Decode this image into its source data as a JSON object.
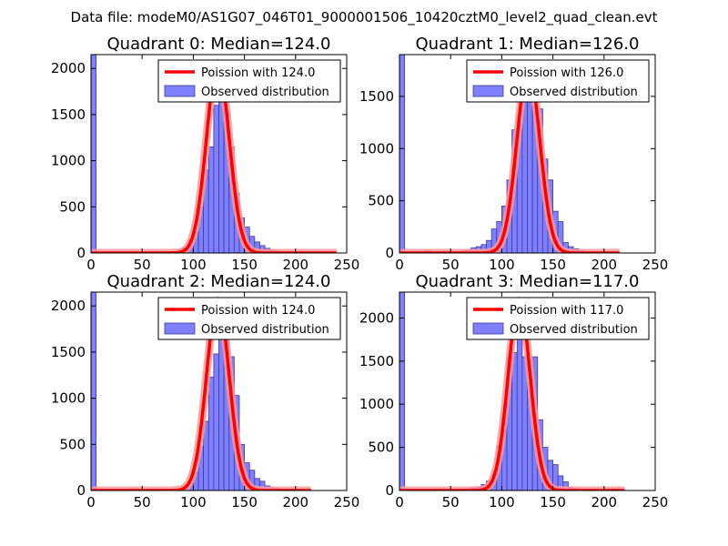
{
  "suptitle": "Data file: modeM0/AS1G07_046T01_9000001506_10420cztM0_level2_quad_clean.evt",
  "colors": {
    "bar_fill": "#8080ff",
    "bar_edge": "#3a3aa0",
    "line": "#ff0000",
    "line_peak": "#ff9999",
    "legend_patch": "#8080ff"
  },
  "chart_data": [
    {
      "type": "bar",
      "title": "Quadrant 0: Median=124.0",
      "legend": [
        "Poission with 124.0",
        "Observed distribution"
      ],
      "xlim": [
        0,
        250
      ],
      "ylim": [
        0,
        2150
      ],
      "xticks": [
        0,
        50,
        100,
        150,
        200,
        250
      ],
      "yticks": [
        0,
        500,
        1000,
        1500,
        2000
      ],
      "bin_width": 5,
      "bins": [
        {
          "x": 0,
          "h": 2150
        },
        {
          "x": 70,
          "h": 8
        },
        {
          "x": 75,
          "h": 10
        },
        {
          "x": 80,
          "h": 15
        },
        {
          "x": 85,
          "h": 30
        },
        {
          "x": 90,
          "h": 60
        },
        {
          "x": 95,
          "h": 140
        },
        {
          "x": 100,
          "h": 220
        },
        {
          "x": 105,
          "h": 500
        },
        {
          "x": 110,
          "h": 900
        },
        {
          "x": 115,
          "h": 1150
        },
        {
          "x": 120,
          "h": 1600
        },
        {
          "x": 125,
          "h": 1800
        },
        {
          "x": 130,
          "h": 1550
        },
        {
          "x": 135,
          "h": 1150
        },
        {
          "x": 140,
          "h": 650
        },
        {
          "x": 145,
          "h": 380
        },
        {
          "x": 150,
          "h": 280
        },
        {
          "x": 155,
          "h": 180
        },
        {
          "x": 160,
          "h": 120
        },
        {
          "x": 165,
          "h": 80
        },
        {
          "x": 170,
          "h": 50
        },
        {
          "x": 175,
          "h": 30
        },
        {
          "x": 180,
          "h": 20
        },
        {
          "x": 185,
          "h": 10
        }
      ],
      "poisson_mean": 124.0,
      "poisson_peak": 2050,
      "x_end": 240
    },
    {
      "type": "bar",
      "title": "Quadrant 1: Median=126.0",
      "legend": [
        "Poission with 126.0",
        "Observed distribution"
      ],
      "xlim": [
        0,
        250
      ],
      "ylim": [
        0,
        1900
      ],
      "xticks": [
        0,
        50,
        100,
        150,
        200,
        250
      ],
      "yticks": [
        0,
        500,
        1000,
        1500
      ],
      "bin_width": 5,
      "bins": [
        {
          "x": 0,
          "h": 1900
        },
        {
          "x": 25,
          "h": 25
        },
        {
          "x": 30,
          "h": 10
        },
        {
          "x": 40,
          "h": 15
        },
        {
          "x": 45,
          "h": 10
        },
        {
          "x": 60,
          "h": 20
        },
        {
          "x": 65,
          "h": 30
        },
        {
          "x": 70,
          "h": 50
        },
        {
          "x": 75,
          "h": 60
        },
        {
          "x": 80,
          "h": 80
        },
        {
          "x": 85,
          "h": 120
        },
        {
          "x": 90,
          "h": 230
        },
        {
          "x": 95,
          "h": 300
        },
        {
          "x": 100,
          "h": 450
        },
        {
          "x": 105,
          "h": 700
        },
        {
          "x": 110,
          "h": 1180
        },
        {
          "x": 115,
          "h": 1230
        },
        {
          "x": 120,
          "h": 1800
        },
        {
          "x": 125,
          "h": 1820
        },
        {
          "x": 130,
          "h": 1400
        },
        {
          "x": 135,
          "h": 1380
        },
        {
          "x": 140,
          "h": 900
        },
        {
          "x": 145,
          "h": 700
        },
        {
          "x": 150,
          "h": 400
        },
        {
          "x": 155,
          "h": 300
        },
        {
          "x": 160,
          "h": 100
        },
        {
          "x": 165,
          "h": 60
        },
        {
          "x": 170,
          "h": 40
        },
        {
          "x": 175,
          "h": 20
        }
      ],
      "poisson_mean": 126.0,
      "poisson_peak": 1780,
      "x_end": 215
    },
    {
      "type": "bar",
      "title": "Quadrant 2: Median=124.0",
      "legend": [
        "Poission with 124.0",
        "Observed distribution"
      ],
      "xlim": [
        0,
        250
      ],
      "ylim": [
        0,
        2150
      ],
      "xticks": [
        0,
        50,
        100,
        150,
        200,
        250
      ],
      "yticks": [
        0,
        500,
        1000,
        1500,
        2000
      ],
      "bin_width": 5,
      "bins": [
        {
          "x": 0,
          "h": 2150
        },
        {
          "x": 65,
          "h": 10
        },
        {
          "x": 75,
          "h": 10
        },
        {
          "x": 85,
          "h": 20
        },
        {
          "x": 90,
          "h": 40
        },
        {
          "x": 95,
          "h": 80
        },
        {
          "x": 100,
          "h": 200
        },
        {
          "x": 105,
          "h": 480
        },
        {
          "x": 110,
          "h": 750
        },
        {
          "x": 115,
          "h": 1230
        },
        {
          "x": 120,
          "h": 1480
        },
        {
          "x": 125,
          "h": 1680
        },
        {
          "x": 130,
          "h": 1780
        },
        {
          "x": 135,
          "h": 1450
        },
        {
          "x": 140,
          "h": 1030
        },
        {
          "x": 145,
          "h": 500
        },
        {
          "x": 150,
          "h": 300
        },
        {
          "x": 155,
          "h": 220
        },
        {
          "x": 160,
          "h": 130
        },
        {
          "x": 165,
          "h": 100
        },
        {
          "x": 170,
          "h": 50
        },
        {
          "x": 175,
          "h": 30
        },
        {
          "x": 180,
          "h": 20
        }
      ],
      "poisson_mean": 124.0,
      "poisson_peak": 2050,
      "x_end": 215
    },
    {
      "type": "bar",
      "title": "Quadrant 3: Median=117.0",
      "legend": [
        "Poission with 117.0",
        "Observed distribution"
      ],
      "xlim": [
        0,
        250
      ],
      "ylim": [
        0,
        2300
      ],
      "xticks": [
        0,
        50,
        100,
        150,
        200,
        250
      ],
      "yticks": [
        0,
        500,
        1000,
        1500,
        2000
      ],
      "bin_width": 5,
      "bins": [
        {
          "x": 0,
          "h": 2300
        },
        {
          "x": 60,
          "h": 10
        },
        {
          "x": 65,
          "h": 20
        },
        {
          "x": 70,
          "h": 30
        },
        {
          "x": 75,
          "h": 40
        },
        {
          "x": 80,
          "h": 70
        },
        {
          "x": 85,
          "h": 110
        },
        {
          "x": 90,
          "h": 180
        },
        {
          "x": 95,
          "h": 520
        },
        {
          "x": 100,
          "h": 850
        },
        {
          "x": 105,
          "h": 1550
        },
        {
          "x": 110,
          "h": 1600
        },
        {
          "x": 115,
          "h": 1800
        },
        {
          "x": 120,
          "h": 1550
        },
        {
          "x": 125,
          "h": 1250
        },
        {
          "x": 130,
          "h": 1550
        },
        {
          "x": 135,
          "h": 820
        },
        {
          "x": 140,
          "h": 500
        },
        {
          "x": 145,
          "h": 350
        },
        {
          "x": 150,
          "h": 300
        },
        {
          "x": 155,
          "h": 170
        },
        {
          "x": 160,
          "h": 100
        },
        {
          "x": 165,
          "h": 40
        },
        {
          "x": 170,
          "h": 20
        },
        {
          "x": 175,
          "h": 10
        }
      ],
      "poisson_mean": 117.0,
      "poisson_peak": 2190,
      "x_end": 220
    }
  ]
}
